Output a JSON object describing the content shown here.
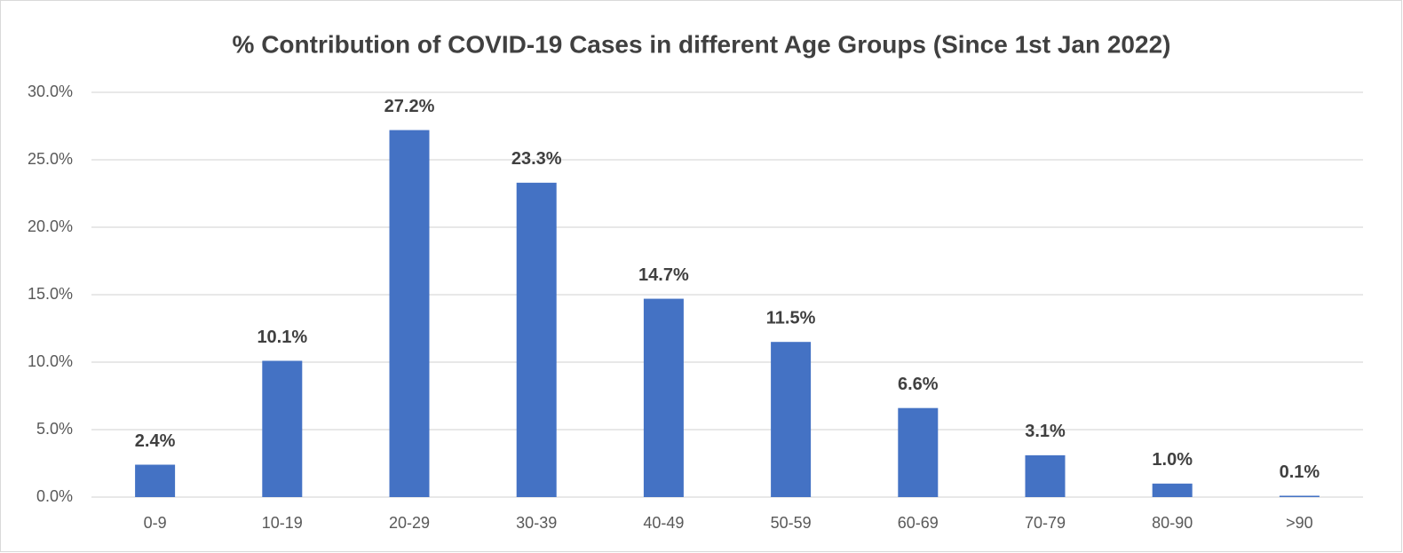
{
  "chart_data": {
    "type": "bar",
    "title": "% Contribution of COVID-19 Cases in different Age Groups (Since 1st Jan 2022)",
    "categories": [
      "0-9",
      "10-19",
      "20-29",
      "30-39",
      "40-49",
      "50-59",
      "60-69",
      "70-79",
      "80-90",
      ">90"
    ],
    "values": [
      2.4,
      10.1,
      27.2,
      23.3,
      14.7,
      11.5,
      6.6,
      3.1,
      1.0,
      0.1
    ],
    "value_labels": [
      "2.4%",
      "10.1%",
      "27.2%",
      "23.3%",
      "14.7%",
      "11.5%",
      "6.6%",
      "3.1%",
      "1.0%",
      "0.1%"
    ],
    "color": "#4472c4",
    "ylim": [
      0,
      30
    ],
    "yticks": [
      {
        "value": 0,
        "label": "0.0%"
      },
      {
        "value": 5,
        "label": "5.0%"
      },
      {
        "value": 10,
        "label": "10.0%"
      },
      {
        "value": 15,
        "label": "15.0%"
      },
      {
        "value": 20,
        "label": "20.0%"
      },
      {
        "value": 25,
        "label": "25.0%"
      },
      {
        "value": 30,
        "label": "30.0%"
      }
    ],
    "grid": true
  }
}
